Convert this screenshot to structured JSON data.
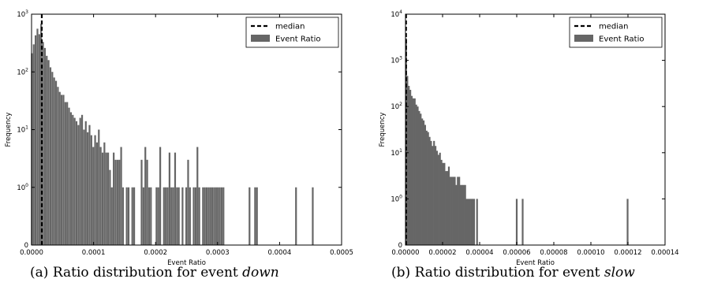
{
  "figure": {
    "captions": [
      {
        "label": "(a)",
        "text": "Ratio distribution for event",
        "event": "down"
      },
      {
        "label": "(b)",
        "text": "Ratio distribution for event",
        "event": "slow"
      }
    ]
  },
  "chart_data": [
    {
      "type": "bar",
      "xlabel": "Event Ratio",
      "ylabel": "Frequency",
      "xlim": [
        0,
        0.0005
      ],
      "xticks": [
        "0.0000",
        "0.0001",
        "0.0002",
        "0.0003",
        "0.0004",
        "0.0005"
      ],
      "xtick_values": [
        0,
        0.0001,
        0.0002,
        0.0003,
        0.0004,
        0.0005
      ],
      "yscale": "symlog",
      "ylim": [
        0,
        1000
      ],
      "yticks": [
        {
          "value": 0,
          "base": "0",
          "exp": ""
        },
        {
          "value": 1,
          "base": "10",
          "exp": "0"
        },
        {
          "value": 10,
          "base": "10",
          "exp": "1"
        },
        {
          "value": 100,
          "base": "10",
          "exp": "2"
        },
        {
          "value": 1000,
          "base": "10",
          "exp": "3"
        }
      ],
      "bar_color": "#666666",
      "median": 1.65e-05,
      "legend": {
        "position": "top-right",
        "entries": [
          "median",
          "Event Ratio"
        ]
      },
      "bins": [
        {
          "x": 5e-07,
          "y": 210
        },
        {
          "x": 3.5e-06,
          "y": 300
        },
        {
          "x": 6.5e-06,
          "y": 430
        },
        {
          "x": 9.5e-06,
          "y": 560
        },
        {
          "x": 1.25e-05,
          "y": 450
        },
        {
          "x": 1.55e-05,
          "y": 680
        },
        {
          "x": 1.85e-05,
          "y": 330
        },
        {
          "x": 2.15e-05,
          "y": 260
        },
        {
          "x": 2.45e-05,
          "y": 190
        },
        {
          "x": 2.75e-05,
          "y": 160
        },
        {
          "x": 3.05e-05,
          "y": 120
        },
        {
          "x": 3.35e-05,
          "y": 100
        },
        {
          "x": 3.65e-05,
          "y": 80
        },
        {
          "x": 3.95e-05,
          "y": 70
        },
        {
          "x": 4.25e-05,
          "y": 55
        },
        {
          "x": 4.55e-05,
          "y": 45
        },
        {
          "x": 4.85e-05,
          "y": 40
        },
        {
          "x": 5.15e-05,
          "y": 40
        },
        {
          "x": 5.45e-05,
          "y": 30
        },
        {
          "x": 5.75e-05,
          "y": 30
        },
        {
          "x": 6.05e-05,
          "y": 24
        },
        {
          "x": 6.35e-05,
          "y": 20
        },
        {
          "x": 6.65e-05,
          "y": 18
        },
        {
          "x": 6.95e-05,
          "y": 16
        },
        {
          "x": 7.25e-05,
          "y": 14
        },
        {
          "x": 7.55e-05,
          "y": 12
        },
        {
          "x": 7.85e-05,
          "y": 16
        },
        {
          "x": 8.15e-05,
          "y": 18
        },
        {
          "x": 8.45e-05,
          "y": 10
        },
        {
          "x": 8.75e-05,
          "y": 14
        },
        {
          "x": 9.05e-05,
          "y": 9
        },
        {
          "x": 9.35e-05,
          "y": 12
        },
        {
          "x": 9.65e-05,
          "y": 8
        },
        {
          "x": 9.95e-05,
          "y": 5
        },
        {
          "x": 0.0001025,
          "y": 8
        },
        {
          "x": 0.0001055,
          "y": 6
        },
        {
          "x": 0.0001085,
          "y": 10
        },
        {
          "x": 0.0001115,
          "y": 5
        },
        {
          "x": 0.0001145,
          "y": 4
        },
        {
          "x": 0.0001175,
          "y": 6
        },
        {
          "x": 0.0001205,
          "y": 4
        },
        {
          "x": 0.0001235,
          "y": 4
        },
        {
          "x": 0.0001265,
          "y": 2
        },
        {
          "x": 0.0001295,
          "y": 1
        },
        {
          "x": 0.0001325,
          "y": 4
        },
        {
          "x": 0.0001355,
          "y": 3
        },
        {
          "x": 0.0001385,
          "y": 3
        },
        {
          "x": 0.0001415,
          "y": 3
        },
        {
          "x": 0.0001445,
          "y": 5
        },
        {
          "x": 0.0001475,
          "y": 1
        },
        {
          "x": 0.0001535,
          "y": 1
        },
        {
          "x": 0.0001565,
          "y": 1
        },
        {
          "x": 0.0001625,
          "y": 1
        },
        {
          "x": 0.0001655,
          "y": 1
        },
        {
          "x": 0.0001775,
          "y": 3
        },
        {
          "x": 0.0001805,
          "y": 1
        },
        {
          "x": 0.0001835,
          "y": 5
        },
        {
          "x": 0.0001865,
          "y": 3
        },
        {
          "x": 0.0001895,
          "y": 1
        },
        {
          "x": 0.0001925,
          "y": 1
        },
        {
          "x": 0.0002015,
          "y": 1
        },
        {
          "x": 0.0002045,
          "y": 1
        },
        {
          "x": 0.0002075,
          "y": 5
        },
        {
          "x": 0.0002135,
          "y": 1
        },
        {
          "x": 0.0002165,
          "y": 1
        },
        {
          "x": 0.0002195,
          "y": 1
        },
        {
          "x": 0.0002225,
          "y": 4
        },
        {
          "x": 0.0002255,
          "y": 1
        },
        {
          "x": 0.0002285,
          "y": 1
        },
        {
          "x": 0.0002315,
          "y": 4
        },
        {
          "x": 0.0002345,
          "y": 1
        },
        {
          "x": 0.0002375,
          "y": 1
        },
        {
          "x": 0.0002435,
          "y": 1
        },
        {
          "x": 0.0002495,
          "y": 1
        },
        {
          "x": 0.0002525,
          "y": 3
        },
        {
          "x": 0.0002555,
          "y": 1
        },
        {
          "x": 0.0002615,
          "y": 1
        },
        {
          "x": 0.0002645,
          "y": 1
        },
        {
          "x": 0.0002675,
          "y": 5
        },
        {
          "x": 0.0002705,
          "y": 1
        },
        {
          "x": 0.0002765,
          "y": 1
        },
        {
          "x": 0.0002795,
          "y": 1
        },
        {
          "x": 0.0002825,
          "y": 1
        },
        {
          "x": 0.0002855,
          "y": 1
        },
        {
          "x": 0.0002885,
          "y": 1
        },
        {
          "x": 0.0002915,
          "y": 1
        },
        {
          "x": 0.0002945,
          "y": 1
        },
        {
          "x": 0.0002975,
          "y": 1
        },
        {
          "x": 0.0003005,
          "y": 1
        },
        {
          "x": 0.0003035,
          "y": 1
        },
        {
          "x": 0.0003065,
          "y": 1
        },
        {
          "x": 0.0003095,
          "y": 1
        },
        {
          "x": 0.0003515,
          "y": 1
        },
        {
          "x": 0.0003605,
          "y": 1
        },
        {
          "x": 0.0003635,
          "y": 1
        },
        {
          "x": 0.0004265,
          "y": 1
        },
        {
          "x": 0.0004535,
          "y": 1
        }
      ]
    },
    {
      "type": "bar",
      "xlabel": "Event Ratio",
      "ylabel": "Frequency",
      "xlim": [
        0,
        0.00014
      ],
      "xticks": [
        "0.00000",
        "0.00002",
        "0.00004",
        "0.00006",
        "0.00008",
        "0.00010",
        "0.00012",
        "0.00014"
      ],
      "xtick_values": [
        0,
        2e-05,
        4e-05,
        6e-05,
        8e-05,
        0.0001,
        0.00012,
        0.00014
      ],
      "yscale": "symlog",
      "ylim": [
        0,
        10000
      ],
      "yticks": [
        {
          "value": 0,
          "base": "0",
          "exp": ""
        },
        {
          "value": 1,
          "base": "10",
          "exp": "0"
        },
        {
          "value": 10,
          "base": "10",
          "exp": "1"
        },
        {
          "value": 100,
          "base": "10",
          "exp": "2"
        },
        {
          "value": 1000,
          "base": "10",
          "exp": "3"
        },
        {
          "value": 10000,
          "base": "10",
          "exp": "4"
        }
      ],
      "bar_color": "#666666",
      "median": 3e-07,
      "legend": {
        "position": "top-right",
        "entries": [
          "median",
          "Event Ratio"
        ]
      },
      "bins": [
        {
          "x": 3e-07,
          "y": 3000
        },
        {
          "x": 1e-06,
          "y": 460
        },
        {
          "x": 1.8e-06,
          "y": 280
        },
        {
          "x": 2.6e-06,
          "y": 230
        },
        {
          "x": 3.4e-06,
          "y": 170
        },
        {
          "x": 4.2e-06,
          "y": 150
        },
        {
          "x": 5e-06,
          "y": 150
        },
        {
          "x": 5.8e-06,
          "y": 110
        },
        {
          "x": 6.6e-06,
          "y": 100
        },
        {
          "x": 7.4e-06,
          "y": 80
        },
        {
          "x": 8.2e-06,
          "y": 70
        },
        {
          "x": 9e-06,
          "y": 55
        },
        {
          "x": 9.8e-06,
          "y": 50
        },
        {
          "x": 1.06e-05,
          "y": 40
        },
        {
          "x": 1.14e-05,
          "y": 30
        },
        {
          "x": 1.22e-05,
          "y": 28
        },
        {
          "x": 1.3e-05,
          "y": 22
        },
        {
          "x": 1.38e-05,
          "y": 18
        },
        {
          "x": 1.46e-05,
          "y": 14
        },
        {
          "x": 1.54e-05,
          "y": 18
        },
        {
          "x": 1.62e-05,
          "y": 14
        },
        {
          "x": 1.7e-05,
          "y": 11
        },
        {
          "x": 1.78e-05,
          "y": 9
        },
        {
          "x": 1.86e-05,
          "y": 10
        },
        {
          "x": 1.94e-05,
          "y": 7
        },
        {
          "x": 2.02e-05,
          "y": 6
        },
        {
          "x": 2.1e-05,
          "y": 6
        },
        {
          "x": 2.18e-05,
          "y": 4
        },
        {
          "x": 2.26e-05,
          "y": 4
        },
        {
          "x": 2.34e-05,
          "y": 5
        },
        {
          "x": 2.42e-05,
          "y": 3
        },
        {
          "x": 2.5e-05,
          "y": 3
        },
        {
          "x": 2.58e-05,
          "y": 3
        },
        {
          "x": 2.66e-05,
          "y": 3
        },
        {
          "x": 2.74e-05,
          "y": 2
        },
        {
          "x": 2.82e-05,
          "y": 3
        },
        {
          "x": 2.9e-05,
          "y": 3
        },
        {
          "x": 2.98e-05,
          "y": 2
        },
        {
          "x": 3.06e-05,
          "y": 2
        },
        {
          "x": 3.14e-05,
          "y": 2
        },
        {
          "x": 3.22e-05,
          "y": 2
        },
        {
          "x": 3.3e-05,
          "y": 1
        },
        {
          "x": 3.38e-05,
          "y": 1
        },
        {
          "x": 3.46e-05,
          "y": 1
        },
        {
          "x": 3.54e-05,
          "y": 1
        },
        {
          "x": 3.62e-05,
          "y": 1
        },
        {
          "x": 3.7e-05,
          "y": 1
        },
        {
          "x": 3.86e-05,
          "y": 1
        },
        {
          "x": 6e-05,
          "y": 1
        },
        {
          "x": 6.32e-05,
          "y": 1
        },
        {
          "x": 0.0001198,
          "y": 1
        }
      ]
    }
  ]
}
